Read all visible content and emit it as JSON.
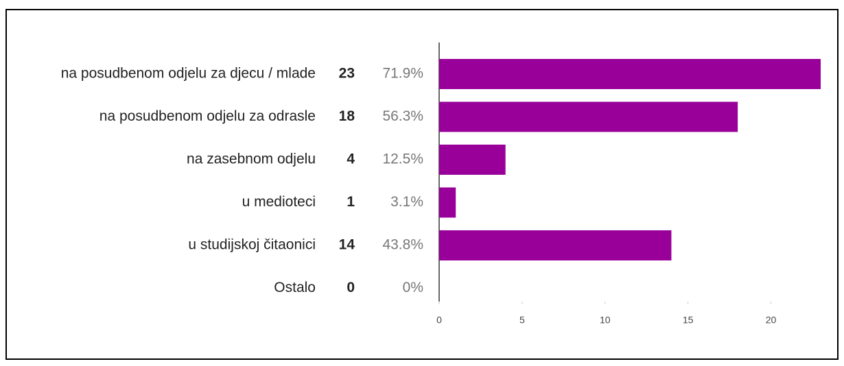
{
  "chart_data": {
    "type": "bar",
    "categories": [
      "na posudbenom odjelu za djecu / mlade",
      "na posudbenom odjelu za odrasle",
      "na zasebnom odjelu",
      "u medioteci",
      "u studijskoj čitaonici",
      "Ostalo"
    ],
    "values": [
      23,
      18,
      4,
      1,
      14,
      0
    ],
    "percent_labels": [
      "71.9%",
      "56.3%",
      "12.5%",
      "3.1%",
      "43.8%",
      "0%"
    ],
    "color": "#990099",
    "xlim": [
      0,
      23
    ],
    "xticks": [
      0,
      5,
      10,
      15,
      20
    ]
  }
}
